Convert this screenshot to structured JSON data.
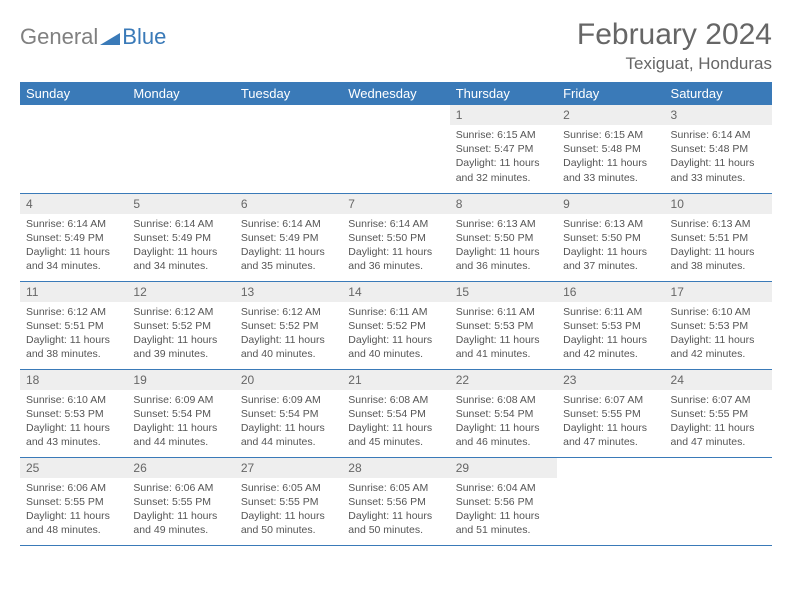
{
  "brand": {
    "general": "General",
    "blue": "Blue",
    "icon_color": "#3a7ab8"
  },
  "title": "February 2024",
  "location": "Texiguat, Honduras",
  "header_bg": "#3a7ab8",
  "header_text_color": "#ffffff",
  "daynum_bg": "#eeeeee",
  "border_color": "#3a7ab8",
  "text_color": "#555555",
  "font_size_title": 30,
  "font_size_location": 17,
  "font_size_header": 13,
  "font_size_daynum": 12,
  "font_size_body": 10.5,
  "days_of_week": [
    "Sunday",
    "Monday",
    "Tuesday",
    "Wednesday",
    "Thursday",
    "Friday",
    "Saturday"
  ],
  "weeks": [
    [
      {
        "empty": true
      },
      {
        "empty": true
      },
      {
        "empty": true
      },
      {
        "empty": true
      },
      {
        "n": "1",
        "sunrise": "6:15 AM",
        "sunset": "5:47 PM",
        "dl": "11 hours and 32 minutes."
      },
      {
        "n": "2",
        "sunrise": "6:15 AM",
        "sunset": "5:48 PM",
        "dl": "11 hours and 33 minutes."
      },
      {
        "n": "3",
        "sunrise": "6:14 AM",
        "sunset": "5:48 PM",
        "dl": "11 hours and 33 minutes."
      }
    ],
    [
      {
        "n": "4",
        "sunrise": "6:14 AM",
        "sunset": "5:49 PM",
        "dl": "11 hours and 34 minutes."
      },
      {
        "n": "5",
        "sunrise": "6:14 AM",
        "sunset": "5:49 PM",
        "dl": "11 hours and 34 minutes."
      },
      {
        "n": "6",
        "sunrise": "6:14 AM",
        "sunset": "5:49 PM",
        "dl": "11 hours and 35 minutes."
      },
      {
        "n": "7",
        "sunrise": "6:14 AM",
        "sunset": "5:50 PM",
        "dl": "11 hours and 36 minutes."
      },
      {
        "n": "8",
        "sunrise": "6:13 AM",
        "sunset": "5:50 PM",
        "dl": "11 hours and 36 minutes."
      },
      {
        "n": "9",
        "sunrise": "6:13 AM",
        "sunset": "5:50 PM",
        "dl": "11 hours and 37 minutes."
      },
      {
        "n": "10",
        "sunrise": "6:13 AM",
        "sunset": "5:51 PM",
        "dl": "11 hours and 38 minutes."
      }
    ],
    [
      {
        "n": "11",
        "sunrise": "6:12 AM",
        "sunset": "5:51 PM",
        "dl": "11 hours and 38 minutes."
      },
      {
        "n": "12",
        "sunrise": "6:12 AM",
        "sunset": "5:52 PM",
        "dl": "11 hours and 39 minutes."
      },
      {
        "n": "13",
        "sunrise": "6:12 AM",
        "sunset": "5:52 PM",
        "dl": "11 hours and 40 minutes."
      },
      {
        "n": "14",
        "sunrise": "6:11 AM",
        "sunset": "5:52 PM",
        "dl": "11 hours and 40 minutes."
      },
      {
        "n": "15",
        "sunrise": "6:11 AM",
        "sunset": "5:53 PM",
        "dl": "11 hours and 41 minutes."
      },
      {
        "n": "16",
        "sunrise": "6:11 AM",
        "sunset": "5:53 PM",
        "dl": "11 hours and 42 minutes."
      },
      {
        "n": "17",
        "sunrise": "6:10 AM",
        "sunset": "5:53 PM",
        "dl": "11 hours and 42 minutes."
      }
    ],
    [
      {
        "n": "18",
        "sunrise": "6:10 AM",
        "sunset": "5:53 PM",
        "dl": "11 hours and 43 minutes."
      },
      {
        "n": "19",
        "sunrise": "6:09 AM",
        "sunset": "5:54 PM",
        "dl": "11 hours and 44 minutes."
      },
      {
        "n": "20",
        "sunrise": "6:09 AM",
        "sunset": "5:54 PM",
        "dl": "11 hours and 44 minutes."
      },
      {
        "n": "21",
        "sunrise": "6:08 AM",
        "sunset": "5:54 PM",
        "dl": "11 hours and 45 minutes."
      },
      {
        "n": "22",
        "sunrise": "6:08 AM",
        "sunset": "5:54 PM",
        "dl": "11 hours and 46 minutes."
      },
      {
        "n": "23",
        "sunrise": "6:07 AM",
        "sunset": "5:55 PM",
        "dl": "11 hours and 47 minutes."
      },
      {
        "n": "24",
        "sunrise": "6:07 AM",
        "sunset": "5:55 PM",
        "dl": "11 hours and 47 minutes."
      }
    ],
    [
      {
        "n": "25",
        "sunrise": "6:06 AM",
        "sunset": "5:55 PM",
        "dl": "11 hours and 48 minutes."
      },
      {
        "n": "26",
        "sunrise": "6:06 AM",
        "sunset": "5:55 PM",
        "dl": "11 hours and 49 minutes."
      },
      {
        "n": "27",
        "sunrise": "6:05 AM",
        "sunset": "5:55 PM",
        "dl": "11 hours and 50 minutes."
      },
      {
        "n": "28",
        "sunrise": "6:05 AM",
        "sunset": "5:56 PM",
        "dl": "11 hours and 50 minutes."
      },
      {
        "n": "29",
        "sunrise": "6:04 AM",
        "sunset": "5:56 PM",
        "dl": "11 hours and 51 minutes."
      },
      {
        "empty": true
      },
      {
        "empty": true
      }
    ]
  ],
  "labels": {
    "sunrise": "Sunrise:",
    "sunset": "Sunset:",
    "daylight": "Daylight:"
  }
}
